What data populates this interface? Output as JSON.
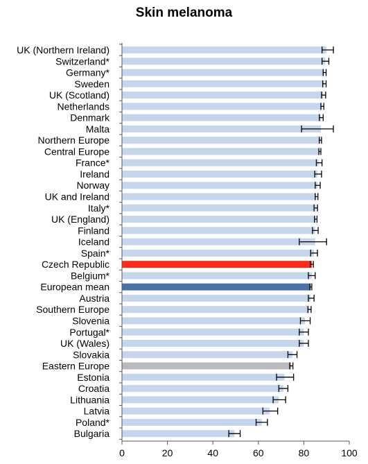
{
  "chart_data": {
    "type": "bar",
    "orientation": "horizontal",
    "title": "Skin melanoma",
    "xlabel": "",
    "ylabel": "",
    "xlim": [
      0,
      100
    ],
    "xticks": [
      "0",
      "20",
      "40",
      "60",
      "80",
      "100"
    ],
    "grid": false,
    "legend": "none",
    "colors": {
      "default": "#c5d6ec",
      "highlight_red": "#ff2a1a",
      "highlight_blue": "#4a72a6",
      "highlight_gray": "#b9b9b9",
      "error_bar": "#000000"
    },
    "bars": [
      {
        "label": "UK (Northern Ireland)",
        "value": 90,
        "err_low": 88,
        "err_high": 93,
        "color": "default"
      },
      {
        "label": "Switzerland*",
        "value": 89.5,
        "err_low": 88,
        "err_high": 91,
        "color": "default"
      },
      {
        "label": "Germany*",
        "value": 89,
        "err_low": 88.5,
        "err_high": 89.8,
        "color": "default"
      },
      {
        "label": "Sweden",
        "value": 89,
        "err_low": 88.3,
        "err_high": 89.8,
        "color": "default"
      },
      {
        "label": "UK (Scotland)",
        "value": 88.5,
        "err_low": 87.8,
        "err_high": 89.6,
        "color": "default"
      },
      {
        "label": "Netherlands",
        "value": 88,
        "err_low": 87.5,
        "err_high": 88.8,
        "color": "default"
      },
      {
        "label": "Denmark",
        "value": 87.5,
        "err_low": 86.8,
        "err_high": 88.5,
        "color": "default"
      },
      {
        "label": "Malta",
        "value": 87.5,
        "err_low": 79,
        "err_high": 93,
        "color": "default"
      },
      {
        "label": "Northern Europe",
        "value": 87.2,
        "err_low": 86.8,
        "err_high": 87.8,
        "color": "default"
      },
      {
        "label": "Central Europe",
        "value": 87,
        "err_low": 86.6,
        "err_high": 87.5,
        "color": "default"
      },
      {
        "label": "France*",
        "value": 86.5,
        "err_low": 85.5,
        "err_high": 88,
        "color": "default"
      },
      {
        "label": "Ireland",
        "value": 86,
        "err_low": 84.8,
        "err_high": 87.8,
        "color": "default"
      },
      {
        "label": "Norway",
        "value": 86,
        "err_low": 85,
        "err_high": 87.2,
        "color": "default"
      },
      {
        "label": "UK and Ireland",
        "value": 85.5,
        "err_low": 85,
        "err_high": 86.2,
        "color": "default"
      },
      {
        "label": "Italy*",
        "value": 85.3,
        "err_low": 84.5,
        "err_high": 86,
        "color": "default"
      },
      {
        "label": "UK (England)",
        "value": 85.2,
        "err_low": 84.7,
        "err_high": 85.8,
        "color": "default"
      },
      {
        "label": "Finland",
        "value": 85,
        "err_low": 83.8,
        "err_high": 86.3,
        "color": "default"
      },
      {
        "label": "Iceland",
        "value": 85,
        "err_low": 78,
        "err_high": 90,
        "color": "default"
      },
      {
        "label": "Spain*",
        "value": 84.5,
        "err_low": 83,
        "err_high": 86,
        "color": "default"
      },
      {
        "label": "Czech Republic",
        "value": 83.5,
        "err_low": 82.8,
        "err_high": 84.2,
        "color": "highlight_red"
      },
      {
        "label": "Belgium*",
        "value": 83.5,
        "err_low": 82,
        "err_high": 85,
        "color": "default"
      },
      {
        "label": "European mean",
        "value": 83,
        "err_low": 82.7,
        "err_high": 83.5,
        "color": "highlight_blue"
      },
      {
        "label": "Austria",
        "value": 83,
        "err_low": 82,
        "err_high": 84.5,
        "color": "default"
      },
      {
        "label": "Southern Europe",
        "value": 82.5,
        "err_low": 81.8,
        "err_high": 83.2,
        "color": "default"
      },
      {
        "label": "Slovenia",
        "value": 80.5,
        "err_low": 78.5,
        "err_high": 82.8,
        "color": "default"
      },
      {
        "label": "Portugal*",
        "value": 80,
        "err_low": 78,
        "err_high": 82,
        "color": "default"
      },
      {
        "label": "UK (Wales)",
        "value": 80,
        "err_low": 78,
        "err_high": 82,
        "color": "default"
      },
      {
        "label": "Slovakia",
        "value": 75,
        "err_low": 73,
        "err_high": 77,
        "color": "default"
      },
      {
        "label": "Eastern Europe",
        "value": 74.5,
        "err_low": 73.8,
        "err_high": 75.2,
        "color": "highlight_gray"
      },
      {
        "label": "Estonia",
        "value": 71.5,
        "err_low": 68,
        "err_high": 75.5,
        "color": "default"
      },
      {
        "label": "Croatia",
        "value": 71,
        "err_low": 69,
        "err_high": 73,
        "color": "default"
      },
      {
        "label": "Lithuania",
        "value": 69,
        "err_low": 66.5,
        "err_high": 72,
        "color": "default"
      },
      {
        "label": "Latvia",
        "value": 65,
        "err_low": 62,
        "err_high": 68.5,
        "color": "default"
      },
      {
        "label": "Poland*",
        "value": 61.5,
        "err_low": 59,
        "err_high": 64,
        "color": "default"
      },
      {
        "label": "Bulgaria",
        "value": 49.5,
        "err_low": 47,
        "err_high": 52,
        "color": "default"
      }
    ]
  }
}
